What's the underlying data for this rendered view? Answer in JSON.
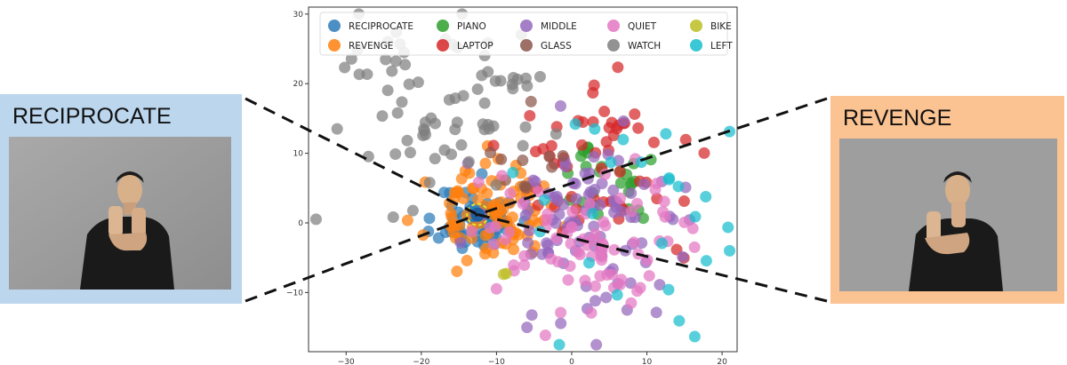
{
  "panels": {
    "left": {
      "label": "RECIPROCATE",
      "bg": "#bcd6ee"
    },
    "right": {
      "label": "REVENGE",
      "bg": "#fbc292"
    }
  },
  "chart_data": {
    "type": "scatter",
    "xlim": [
      -35,
      22
    ],
    "ylim": [
      -18.5,
      31
    ],
    "xticks": [
      -30,
      -20,
      -10,
      0,
      10,
      20
    ],
    "yticks": [
      -10,
      0,
      10,
      20,
      30
    ],
    "tick_labels_x": [
      "−30",
      "−20",
      "−10",
      "0",
      "10",
      "20"
    ],
    "tick_labels_y": [
      "−10",
      "0",
      "10",
      "20",
      "30"
    ],
    "legend_position": "top",
    "highlight_point": {
      "x": -12.5,
      "y": 1.2,
      "ring": "#e8e825"
    },
    "series": [
      {
        "name": "RECIPROCATE",
        "color": "#2b7bba",
        "cx": -12.5,
        "cy": 0.5,
        "sx": 2.6,
        "sy": 2.4,
        "n": 70,
        "seed": 11
      },
      {
        "name": "REVENGE",
        "color": "#ff7f0e",
        "cx": -11.0,
        "cy": 1.2,
        "sx": 4.0,
        "sy": 3.2,
        "n": 90,
        "seed": 23
      },
      {
        "name": "PIANO",
        "color": "#2ca02c",
        "cx": 5.0,
        "cy": 5.5,
        "sx": 2.6,
        "sy": 2.8,
        "n": 26,
        "seed": 37
      },
      {
        "name": "LAPTOP",
        "color": "#d62728",
        "cx": 6.0,
        "cy": 9.0,
        "sx": 7.0,
        "sy": 5.5,
        "n": 55,
        "seed": 41
      },
      {
        "name": "MIDDLE",
        "color": "#9467bd",
        "cx": 2.5,
        "cy": 0.5,
        "sx": 6.5,
        "sy": 6.5,
        "n": 95,
        "seed": 53
      },
      {
        "name": "GLASS",
        "color": "#8c564b",
        "cx": -6.0,
        "cy": 6.0,
        "sx": 3.0,
        "sy": 3.0,
        "n": 10,
        "seed": 59
      },
      {
        "name": "QUIET",
        "color": "#e377c2",
        "cx": 1.5,
        "cy": -2.0,
        "sx": 8.0,
        "sy": 6.0,
        "n": 80,
        "seed": 61
      },
      {
        "name": "WATCH",
        "color": "#7f7f7f",
        "cx": -17.0,
        "cy": 16.0,
        "sx": 8.0,
        "sy": 7.5,
        "n": 75,
        "seed": 71
      },
      {
        "name": "BIKE",
        "color": "#bcbd22",
        "cx": -9.5,
        "cy": -7.0,
        "sx": 0.6,
        "sy": 0.6,
        "n": 2,
        "seed": 73
      },
      {
        "name": "LEFT",
        "color": "#17becf",
        "cx": 8.0,
        "cy": 2.0,
        "sx": 8.0,
        "sy": 9.0,
        "n": 26,
        "seed": 79
      }
    ]
  }
}
